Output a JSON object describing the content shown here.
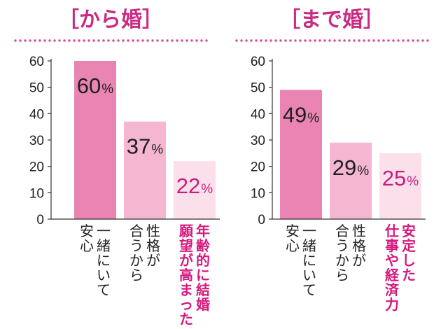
{
  "chart_data": [
    {
      "type": "bar",
      "title": "［から婚］",
      "categories": [
        "一緒にいて安心",
        "性格が合うから",
        "年齢的に結婚願望が高まった"
      ],
      "category_lines": [
        [
          "一緒にいて",
          "安心"
        ],
        [
          "性格が",
          "合うから"
        ],
        [
          "年齢的に結婚",
          "願望が高まった"
        ]
      ],
      "values": [
        60,
        37,
        22
      ],
      "value_labels": [
        "60",
        "37",
        "22"
      ],
      "unit": "%",
      "ylim": [
        0,
        60
      ],
      "yticks": [
        0,
        10,
        20,
        30,
        40,
        50,
        60
      ],
      "bar_colors": [
        "#ea84b2",
        "#f4b6d1",
        "#fbe0ec"
      ],
      "label_colors": [
        "#1f1f1f",
        "#1f1f1f",
        "#c61f7d"
      ],
      "highlight_index": 2,
      "xlabel": "",
      "ylabel": ""
    },
    {
      "type": "bar",
      "title": "［まで婚］",
      "categories": [
        "一緒にいて安心",
        "性格が合うから",
        "安定した仕事や経済力"
      ],
      "category_lines": [
        [
          "一緒にいて",
          "安心"
        ],
        [
          "性格が",
          "合うから"
        ],
        [
          "安定した",
          "仕事や経済力"
        ]
      ],
      "values": [
        49,
        29,
        25
      ],
      "value_labels": [
        "49",
        "29",
        "25"
      ],
      "unit": "%",
      "ylim": [
        0,
        60
      ],
      "yticks": [
        0,
        10,
        20,
        30,
        40,
        50,
        60
      ],
      "bar_colors": [
        "#ea84b2",
        "#f4b6d1",
        "#fbe0ec"
      ],
      "label_colors": [
        "#1f1f1f",
        "#1f1f1f",
        "#c61f7d"
      ],
      "highlight_index": 2,
      "xlabel": "",
      "ylabel": ""
    }
  ],
  "colors": {
    "accent": "#cc2a82",
    "dots": "#d94b94",
    "axis": "#333333"
  }
}
